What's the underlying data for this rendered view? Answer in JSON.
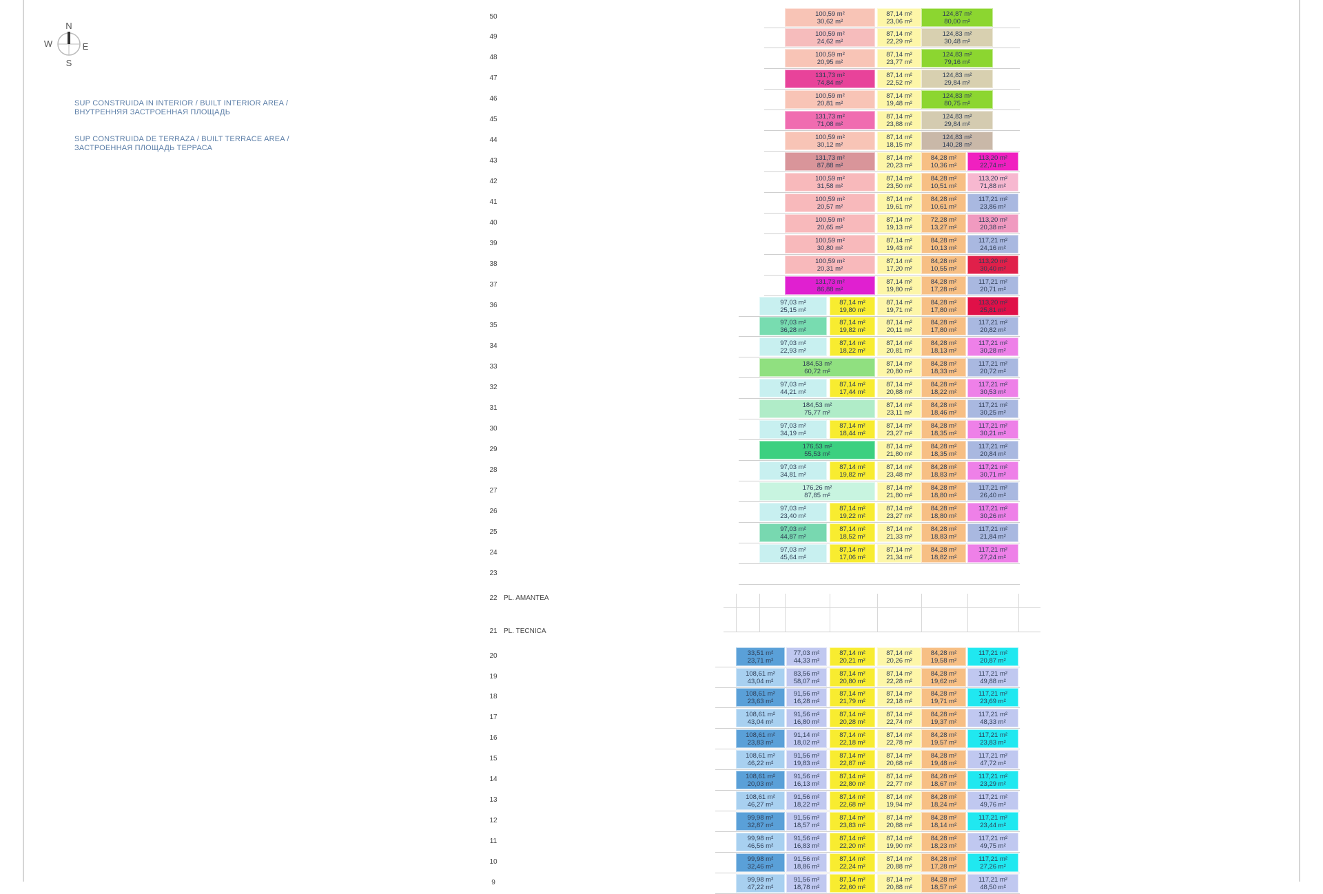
{
  "compass": {
    "n": "N",
    "s": "S",
    "e": "E",
    "w": "W"
  },
  "legend": {
    "interior": "SUP CONSTRUIDA IN INTERIOR / BUILT INTERIOR AREA /\nВНУТРЕННЯЯ ЗАСТРОЕННАЯ ПЛОЩАДЬ",
    "terrace": "SUP CONSTRUIDA DE TERRAZA / BUILT TERRACE AREA /\nЗАСТРОЕННАЯ ПЛОЩАДЬ ТЕРРАСА"
  },
  "special_floors": [
    {
      "n": "22",
      "label": "PL. AMANTEA"
    },
    {
      "n": "21",
      "label": "PL. TECNICA"
    }
  ],
  "upper_floors": [
    {
      "n": "50",
      "cells": [
        [
          "100,59 m²",
          "30,62 m²",
          "#f8c4b6"
        ],
        [
          "87,14 m²",
          "23,06 m²",
          "#fdf6a8"
        ],
        [
          "124,87 m²",
          "80,00 m²",
          "#8cd630"
        ]
      ]
    },
    {
      "n": "49",
      "cells": [
        [
          "100,59 m²",
          "24,62 m²",
          "#f6bcbc"
        ],
        [
          "87,14 m²",
          "22,29 m²",
          "#fdf6a8"
        ],
        [
          "124,83 m²",
          "30,48 m²",
          "#d8d0b0"
        ]
      ]
    },
    {
      "n": "48",
      "cells": [
        [
          "100,59 m²",
          "20,95 m²",
          "#f8c4b6"
        ],
        [
          "87,14 m²",
          "23,77 m²",
          "#fdf6a8"
        ],
        [
          "124,83 m²",
          "79,16 m²",
          "#8cd630"
        ]
      ]
    },
    {
      "n": "47",
      "cells": [
        [
          "131,73 m²",
          "74,84 m²",
          "#e8439a"
        ],
        [
          "87,14 m²",
          "22,52 m²",
          "#fdf6a8"
        ],
        [
          "124,83 m²",
          "29,84 m²",
          "#d8d0b0"
        ]
      ]
    },
    {
      "n": "46",
      "cells": [
        [
          "100,59 m²",
          "20,81 m²",
          "#f8c4b6"
        ],
        [
          "87,14 m²",
          "19,48 m²",
          "#fdf6a8"
        ],
        [
          "124,83 m²",
          "80,75 m²",
          "#8cd630"
        ]
      ]
    },
    {
      "n": "45",
      "cells": [
        [
          "131,73 m²",
          "71,08 m²",
          "#f06cb0"
        ],
        [
          "87,14 m²",
          "23,88 m²",
          "#fdf6a8"
        ],
        [
          "124,83 m²",
          "29,84 m²",
          "#d4cbb0"
        ]
      ]
    },
    {
      "n": "44",
      "cells": [
        [
          "100,59 m²",
          "30,12 m²",
          "#f8c4b6"
        ],
        [
          "87,14 m²",
          "18,15 m²",
          "#fdf6a8"
        ],
        [
          "124,83 m²",
          "140,28 m²",
          "#c9b8a8"
        ]
      ]
    },
    {
      "n": "43",
      "cells": [
        [
          "131,73 m²",
          "87,88 m²",
          "#d9959a"
        ],
        [
          "87,14 m²",
          "20,23 m²",
          "#fdf6a8"
        ],
        [
          "84,28 m²",
          "10,36 m²",
          "#f7bf84"
        ],
        [
          "113,20 m²",
          "22,74 m²",
          "#f020c0"
        ]
      ]
    },
    {
      "n": "42",
      "cells": [
        [
          "100,59 m²",
          "31,58 m²",
          "#f8b9bb"
        ],
        [
          "87,14 m²",
          "23,50 m²",
          "#fdf6a8"
        ],
        [
          "84,28 m²",
          "10,51 m²",
          "#f7bf84"
        ],
        [
          "113,20 m²",
          "71,88 m²",
          "#f7b8d0"
        ]
      ]
    },
    {
      "n": "41",
      "cells": [
        [
          "100,59 m²",
          "20,57 m²",
          "#f8b9bb"
        ],
        [
          "87,14 m²",
          "19,61 m²",
          "#fdf6a8"
        ],
        [
          "84,28 m²",
          "10,61 m²",
          "#f7bf84"
        ],
        [
          "117,21 m²",
          "23,86 m²",
          "#a9b8e0"
        ]
      ]
    },
    {
      "n": "40",
      "cells": [
        [
          "100,59 m²",
          "20,65 m²",
          "#f8b9bb"
        ],
        [
          "87,14 m²",
          "19,13 m²",
          "#fdf6a8"
        ],
        [
          "72,28 m²",
          "13,27 m²",
          "#f7bf84"
        ],
        [
          "113,20 m²",
          "20,38 m²",
          "#f09ac0"
        ]
      ]
    },
    {
      "n": "39",
      "cells": [
        [
          "100,59 m²",
          "30,80 m²",
          "#f8b9bb"
        ],
        [
          "87,14 m²",
          "19,43 m²",
          "#fdf6a8"
        ],
        [
          "84,28 m²",
          "10,13 m²",
          "#f7bf84"
        ],
        [
          "117,21 m²",
          "24,16 m²",
          "#a9b8e0"
        ]
      ]
    },
    {
      "n": "38",
      "cells": [
        [
          "100,59 m²",
          "20,31 m²",
          "#f8b9bb"
        ],
        [
          "87,14 m²",
          "17,20 m²",
          "#fdf6a8"
        ],
        [
          "84,28 m²",
          "10,55 m²",
          "#f7bf84"
        ],
        [
          "113,20 m²",
          "30,40 m²",
          "#e0204a"
        ]
      ]
    },
    {
      "n": "37",
      "cells": [
        [
          "131,73 m²",
          "86,88 m²",
          "#e020d0"
        ],
        [
          "87,14 m²",
          "19,80 m²",
          "#fdf6a8"
        ],
        [
          "84,28 m²",
          "17,28 m²",
          "#f7bf84"
        ],
        [
          "117,21 m²",
          "20,71 m²",
          "#a9b8e0"
        ]
      ]
    }
  ],
  "mid_floors": [
    {
      "n": "36",
      "cells": [
        [
          "97,03 m²",
          "25,15 m²",
          "#c8f0f0"
        ],
        [
          "87,14 m²",
          "19,80 m²",
          "#f8ec30"
        ],
        [
          "87,14 m²",
          "19,71 m²",
          "#fdf6a8"
        ],
        [
          "84,28 m²",
          "17,80 m²",
          "#f7bf84"
        ],
        [
          "113,20 m²",
          "25,81 m²",
          "#e01048"
        ]
      ]
    },
    {
      "n": "35",
      "cells": [
        [
          "97,03 m²",
          "36,28 m²",
          "#78dcb0"
        ],
        [
          "87,14 m²",
          "19,82 m²",
          "#f8ec30"
        ],
        [
          "87,14 m²",
          "20,11 m²",
          "#fdf6a8"
        ],
        [
          "84,28 m²",
          "17,80 m²",
          "#f7bf84"
        ],
        [
          "117,21 m²",
          "20,82 m²",
          "#a9b8e0"
        ]
      ]
    },
    {
      "n": "34",
      "cells": [
        [
          "97,03 m²",
          "22,93 m²",
          "#c8f0f0"
        ],
        [
          "87,14 m²",
          "18,22 m²",
          "#f8ec30"
        ],
        [
          "87,14 m²",
          "20,81 m²",
          "#fdf6a8"
        ],
        [
          "84,28 m²",
          "18,13 m²",
          "#f7bf84"
        ],
        [
          "117,21 m²",
          "30,28 m²",
          "#ee80e8"
        ]
      ]
    },
    {
      "n": "33",
      "cells": [
        [
          "184,53 m²",
          "60,72 m²",
          "#90e080",
          2
        ],
        [
          "87,14 m²",
          "20,80 m²",
          "#fdf6a8"
        ],
        [
          "84,28 m²",
          "18,33 m²",
          "#f7bf84"
        ],
        [
          "117,21 m²",
          "20,72 m²",
          "#a9b8e0"
        ]
      ]
    },
    {
      "n": "32",
      "cells": [
        [
          "97,03 m²",
          "44,21 m²",
          "#c8f0f0"
        ],
        [
          "87,14 m²",
          "17,44 m²",
          "#f8ec30"
        ],
        [
          "87,14 m²",
          "20,88 m²",
          "#fdf6a8"
        ],
        [
          "84,28 m²",
          "18,22 m²",
          "#f7bf84"
        ],
        [
          "117,21 m²",
          "30,53 m²",
          "#ee80e8"
        ]
      ]
    },
    {
      "n": "31",
      "cells": [
        [
          "184,53 m²",
          "75,77 m²",
          "#b0ecc8",
          2
        ],
        [
          "87,14 m²",
          "23,11 m²",
          "#fdf6a8"
        ],
        [
          "84,28 m²",
          "18,46 m²",
          "#f7bf84"
        ],
        [
          "117,21 m²",
          "30,25 m²",
          "#a9b8e0"
        ]
      ]
    },
    {
      "n": "30",
      "cells": [
        [
          "97,03 m²",
          "34,19 m²",
          "#c8f0f0"
        ],
        [
          "87,14 m²",
          "18,44 m²",
          "#f8ec30"
        ],
        [
          "87,14 m²",
          "23,27 m²",
          "#fdf6a8"
        ],
        [
          "84,28 m²",
          "18,35 m²",
          "#f7bf84"
        ],
        [
          "117,21 m²",
          "30,21 m²",
          "#ee80e8"
        ]
      ]
    },
    {
      "n": "29",
      "cells": [
        [
          "176,53 m²",
          "55,53 m²",
          "#3cd080",
          2
        ],
        [
          "87,14 m²",
          "21,80 m²",
          "#fdf6a8"
        ],
        [
          "84,28 m²",
          "18,35 m²",
          "#f7bf84"
        ],
        [
          "117,21 m²",
          "20,84 m²",
          "#a9b8e0"
        ]
      ]
    },
    {
      "n": "28",
      "cells": [
        [
          "97,03 m²",
          "34,81 m²",
          "#c8f0f0"
        ],
        [
          "87,14 m²",
          "19,82 m²",
          "#f8ec30"
        ],
        [
          "87,14 m²",
          "23,48 m²",
          "#fdf6a8"
        ],
        [
          "84,28 m²",
          "18,83 m²",
          "#f7bf84"
        ],
        [
          "117,21 m²",
          "30,71 m²",
          "#ee80e8"
        ]
      ]
    },
    {
      "n": "27",
      "cells": [
        [
          "176,26 m²",
          "87,85 m²",
          "#c8f4e0",
          2
        ],
        [
          "87,14 m²",
          "21,80 m²",
          "#fdf6a8"
        ],
        [
          "84,28 m²",
          "18,80 m²",
          "#f7bf84"
        ],
        [
          "117,21 m²",
          "26,40 m²",
          "#a9b8e0"
        ]
      ]
    },
    {
      "n": "26",
      "cells": [
        [
          "97,03 m²",
          "23,40 m²",
          "#c8f0f0"
        ],
        [
          "87,14 m²",
          "19,22 m²",
          "#f8ec30"
        ],
        [
          "87,14 m²",
          "23,27 m²",
          "#fdf6a8"
        ],
        [
          "84,28 m²",
          "18,80 m²",
          "#f7bf84"
        ],
        [
          "117,21 m²",
          "30,26 m²",
          "#ee80e8"
        ]
      ]
    },
    {
      "n": "25",
      "cells": [
        [
          "97,03 m²",
          "44,87 m²",
          "#78d8b0"
        ],
        [
          "87,14 m²",
          "18,52 m²",
          "#f8ec30"
        ],
        [
          "87,14 m²",
          "21,33 m²",
          "#fdf6a8"
        ],
        [
          "84,28 m²",
          "18,83 m²",
          "#f7bf84"
        ],
        [
          "117,21 m²",
          "21,84 m²",
          "#a9b8e0"
        ]
      ]
    },
    {
      "n": "24",
      "cells": [
        [
          "97,03 m²",
          "45,64 m²",
          "#c8f0f0"
        ],
        [
          "87,14 m²",
          "17,06 m²",
          "#f8ec30"
        ],
        [
          "87,14 m²",
          "21,34 m²",
          "#fdf6a8"
        ],
        [
          "84,28 m²",
          "18,82 m²",
          "#f7bf84"
        ],
        [
          "117,21 m²",
          "27,24 m²",
          "#ee80e8"
        ]
      ]
    },
    {
      "n": "23",
      "cells": []
    }
  ],
  "lower_floors": [
    {
      "n": "20",
      "cells": [
        [
          "33,51 m²",
          "23,71 m²",
          "#5aa0d8"
        ],
        [
          "77,03 m²",
          "44,33 m²",
          "#c0c8f0"
        ],
        [
          "87,14 m²",
          "20,21 m²",
          "#f8ec30"
        ],
        [
          "87,14 m²",
          "20,26 m²",
          "#fdf6a8"
        ],
        [
          "84,28 m²",
          "19,58 m²",
          "#f7bf84"
        ],
        [
          "117,21 m²",
          "20,87 m²",
          "#20e8f0"
        ]
      ]
    },
    {
      "n": "19",
      "cells": [
        [
          "108,61 m²",
          "43,04 m²",
          "#a8d0f0"
        ],
        [
          "83,56 m²",
          "58,07 m²",
          "#c0c8f0"
        ],
        [
          "87,14 m²",
          "20,80 m²",
          "#f8ec30"
        ],
        [
          "87,14 m²",
          "22,28 m²",
          "#fdf6a8"
        ],
        [
          "84,28 m²",
          "19,62 m²",
          "#f7bf84"
        ],
        [
          "117,21 m²",
          "49,88 m²",
          "#c0c8f0"
        ]
      ]
    },
    {
      "n": "18",
      "cells": [
        [
          "108,61 m²",
          "23,63 m²",
          "#5aa0d8"
        ],
        [
          "91,56 m²",
          "16,28 m²",
          "#c0c8f0"
        ],
        [
          "87,14 m²",
          "21,79 m²",
          "#f8ec30"
        ],
        [
          "87,14 m²",
          "22,18 m²",
          "#fdf6a8"
        ],
        [
          "84,28 m²",
          "19,71 m²",
          "#f7bf84"
        ],
        [
          "117,21 m²",
          "23,69 m²",
          "#20e8f0"
        ]
      ]
    },
    {
      "n": "17",
      "cells": [
        [
          "108,61 m²",
          "43,04 m²",
          "#a8d0f0"
        ],
        [
          "91,56 m²",
          "16,80 m²",
          "#c0c8f0"
        ],
        [
          "87,14 m²",
          "20,28 m²",
          "#f8ec30"
        ],
        [
          "87,14 m²",
          "22,74 m²",
          "#fdf6a8"
        ],
        [
          "84,28 m²",
          "19,37 m²",
          "#f7bf84"
        ],
        [
          "117,21 m²",
          "48,33 m²",
          "#c0c8f0"
        ]
      ]
    },
    {
      "n": "16",
      "cells": [
        [
          "108,61 m²",
          "23,83 m²",
          "#5aa0d8"
        ],
        [
          "91,14 m²",
          "18,02 m²",
          "#c0c8f0"
        ],
        [
          "87,14 m²",
          "22,18 m²",
          "#f8ec30"
        ],
        [
          "87,14 m²",
          "22,78 m²",
          "#fdf6a8"
        ],
        [
          "84,28 m²",
          "19,57 m²",
          "#f7bf84"
        ],
        [
          "117,21 m²",
          "23,83 m²",
          "#20e8f0"
        ]
      ]
    },
    {
      "n": "15",
      "cells": [
        [
          "108,61 m²",
          "46,22 m²",
          "#a8d0f0"
        ],
        [
          "91,56 m²",
          "19,83 m²",
          "#c0c8f0"
        ],
        [
          "87,14 m²",
          "22,87 m²",
          "#f8ec30"
        ],
        [
          "87,14 m²",
          "20,68 m²",
          "#fdf6a8"
        ],
        [
          "84,28 m²",
          "19,48 m²",
          "#f7bf84"
        ],
        [
          "117,21 m²",
          "47,72 m²",
          "#c0c8f0"
        ]
      ]
    },
    {
      "n": "14",
      "cells": [
        [
          "108,61 m²",
          "20,03 m²",
          "#5aa0d8"
        ],
        [
          "91,56 m²",
          "16,13 m²",
          "#c0c8f0"
        ],
        [
          "87,14 m²",
          "22,80 m²",
          "#f8ec30"
        ],
        [
          "87,14 m²",
          "22,77 m²",
          "#fdf6a8"
        ],
        [
          "84,28 m²",
          "18,67 m²",
          "#f7bf84"
        ],
        [
          "117,21 m²",
          "23,29 m²",
          "#20e8f0"
        ]
      ]
    },
    {
      "n": "13",
      "cells": [
        [
          "108,61 m²",
          "46,27 m²",
          "#a8d0f0"
        ],
        [
          "91,56 m²",
          "18,22 m²",
          "#c0c8f0"
        ],
        [
          "87,14 m²",
          "22,68 m²",
          "#f8ec30"
        ],
        [
          "87,14 m²",
          "19,94 m²",
          "#fdf6a8"
        ],
        [
          "84,28 m²",
          "18,24 m²",
          "#f7bf84"
        ],
        [
          "117,21 m²",
          "49,76 m²",
          "#c0c8f0"
        ]
      ]
    },
    {
      "n": "12",
      "cells": [
        [
          "99,98 m²",
          "32,87 m²",
          "#5aa0d8"
        ],
        [
          "91,56 m²",
          "18,57 m²",
          "#c0c8f0"
        ],
        [
          "87,14 m²",
          "23,83 m²",
          "#f8ec30"
        ],
        [
          "87,14 m²",
          "20,88 m²",
          "#fdf6a8"
        ],
        [
          "84,28 m²",
          "18,14 m²",
          "#f7bf84"
        ],
        [
          "117,21 m²",
          "23,44 m²",
          "#20e8f0"
        ]
      ]
    },
    {
      "n": "11",
      "cells": [
        [
          "99,98 m²",
          "46,56 m²",
          "#a8d0f0"
        ],
        [
          "91,56 m²",
          "16,83 m²",
          "#c0c8f0"
        ],
        [
          "87,14 m²",
          "22,20 m²",
          "#f8ec30"
        ],
        [
          "87,14 m²",
          "19,90 m²",
          "#fdf6a8"
        ],
        [
          "84,28 m²",
          "18,23 m²",
          "#f7bf84"
        ],
        [
          "117,21 m²",
          "49,75 m²",
          "#c0c8f0"
        ]
      ]
    },
    {
      "n": "10",
      "cells": [
        [
          "99,98 m²",
          "32,46 m²",
          "#5aa0d8"
        ],
        [
          "91,56 m²",
          "18,86 m²",
          "#c0c8f0"
        ],
        [
          "87,14 m²",
          "22,24 m²",
          "#f8ec30"
        ],
        [
          "87,14 m²",
          "20,88 m²",
          "#fdf6a8"
        ],
        [
          "84,28 m²",
          "17,28 m²",
          "#f7bf84"
        ],
        [
          "117,21 m²",
          "27,26 m²",
          "#20e8f0"
        ]
      ]
    },
    {
      "n": "9",
      "cells": [
        [
          "99,98 m²",
          "47,22 m²",
          "#a8d0f0"
        ],
        [
          "91,56 m²",
          "18,78 m²",
          "#c0c8f0"
        ],
        [
          "87,14 m²",
          "22,60 m²",
          "#f8ec30"
        ],
        [
          "87,14 m²",
          "20,88 m²",
          "#fdf6a8"
        ],
        [
          "84,28 m²",
          "18,57 m²",
          "#f7bf84"
        ],
        [
          "117,21 m²",
          "48,50 m²",
          "#c0c8f0"
        ]
      ]
    }
  ]
}
